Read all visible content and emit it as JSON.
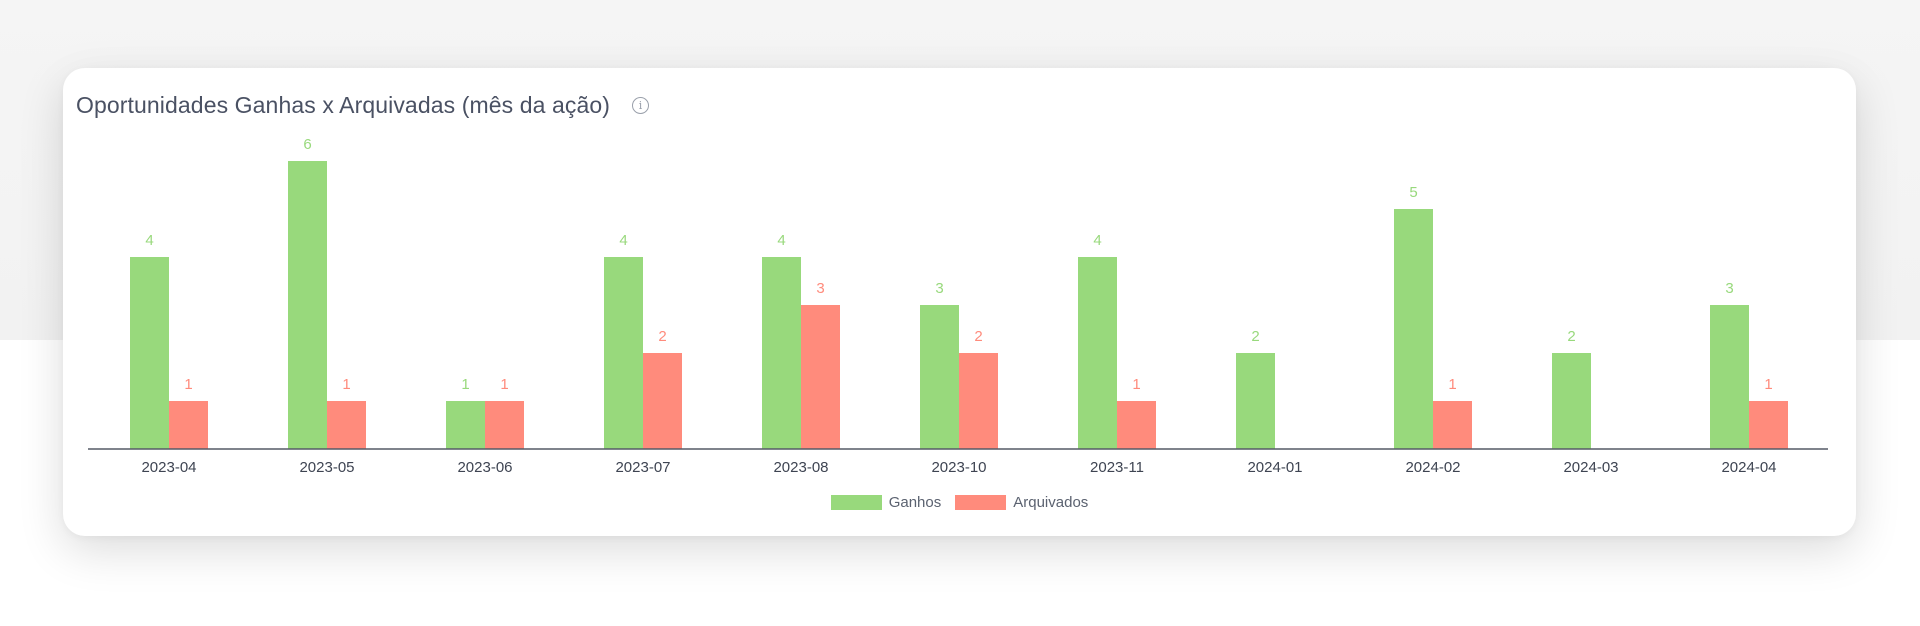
{
  "card": {
    "title": "Oportunidades Ganhas x Arquivadas (mês da ação)",
    "info_icon": "info-icon"
  },
  "colors": {
    "ganhos": "#98d97c",
    "arquivados": "#ff8b7c",
    "axis": "#555a66"
  },
  "chart_data": {
    "type": "bar",
    "title": "Oportunidades Ganhas x Arquivadas (mês da ação)",
    "categories": [
      "2023-04",
      "2023-05",
      "2023-06",
      "2023-07",
      "2023-08",
      "2023-10",
      "2023-11",
      "2024-01",
      "2024-02",
      "2024-03",
      "2024-04"
    ],
    "series": [
      {
        "name": "Ganhos",
        "values": [
          4,
          6,
          1,
          4,
          4,
          3,
          4,
          2,
          5,
          2,
          3
        ]
      },
      {
        "name": "Arquivados",
        "values": [
          1,
          1,
          1,
          2,
          3,
          2,
          1,
          null,
          1,
          null,
          1
        ]
      }
    ],
    "ylim": [
      0,
      6
    ],
    "legend": "bottom-center",
    "grid": false,
    "data_labels": true
  }
}
